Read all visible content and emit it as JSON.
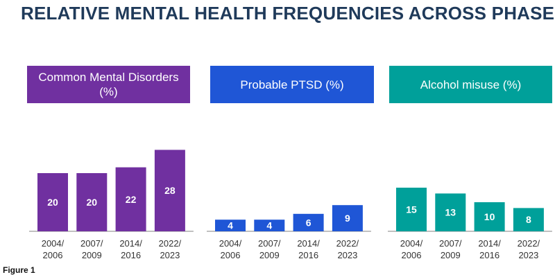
{
  "title": "RELATIVE MENTAL HEALTH FREQUENCIES ACROSS PHASES",
  "caption": "Figure 1",
  "colors": {
    "cmd": "#7030a0",
    "ptsd": "#1f56d6",
    "alcohol": "#00a09a",
    "axis": "#808080",
    "label": "#333333"
  },
  "chart_data": [
    {
      "type": "bar",
      "title": "Common Mental Disorders (%)",
      "categories": [
        "2004/ 2006",
        "2007/ 2009",
        "2014/ 2016",
        "2022/ 2023"
      ],
      "values": [
        20,
        20,
        22,
        28
      ],
      "ylim": [
        0,
        30
      ],
      "grid": false
    },
    {
      "type": "bar",
      "title": "Probable PTSD (%)",
      "categories": [
        "2004/ 2006",
        "2007/ 2009",
        "2014/ 2016",
        "2022/ 2023"
      ],
      "values": [
        4,
        4,
        6,
        9
      ],
      "ylim": [
        0,
        30
      ],
      "grid": false
    },
    {
      "type": "bar",
      "title": "Alcohol misuse (%)",
      "categories": [
        "2004/ 2006",
        "2007/ 2009",
        "2014/ 2016",
        "2022/ 2023"
      ],
      "values": [
        15,
        13,
        10,
        8
      ],
      "ylim": [
        0,
        30
      ],
      "grid": false
    }
  ]
}
